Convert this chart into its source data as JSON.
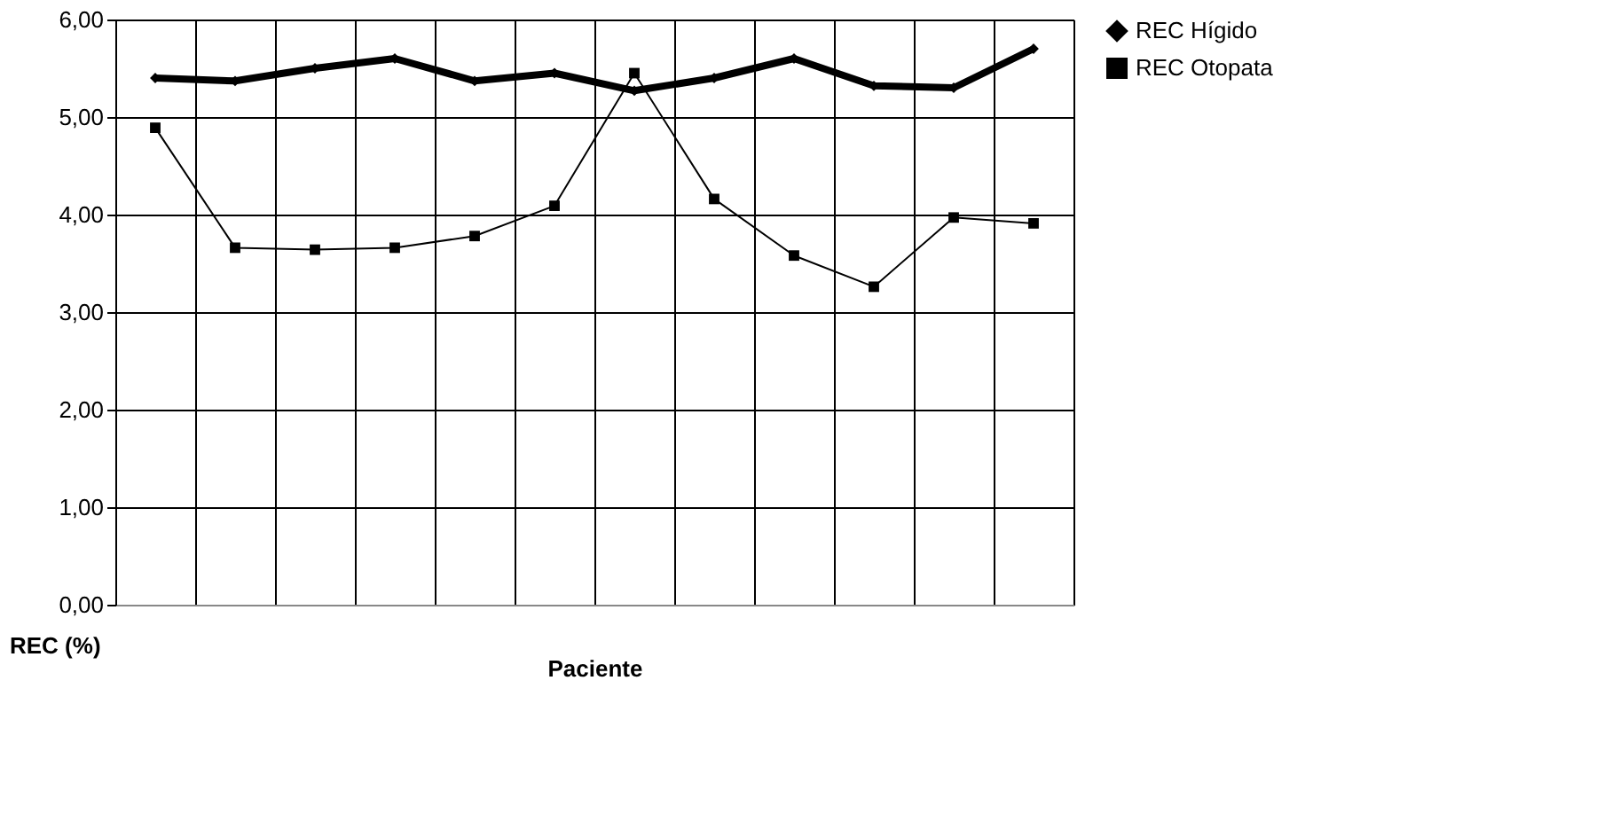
{
  "chart_data": {
    "type": "line",
    "xlabel": "Paciente",
    "ylabel": "REC (%)",
    "categories": [
      null,
      null,
      null,
      null,
      null,
      null,
      null,
      null,
      null,
      null,
      null,
      null
    ],
    "series": [
      {
        "name": "REC Hígido",
        "color": "#000000",
        "marker": "diamond",
        "values": [
          5.4,
          5.37,
          5.5,
          5.6,
          5.37,
          5.45,
          5.27,
          5.4,
          5.6,
          5.32,
          5.3,
          5.7
        ]
      },
      {
        "name": "REC Otopata",
        "color": "#000000",
        "marker": "square",
        "values": [
          4.89,
          3.66,
          3.64,
          3.66,
          3.78,
          4.09,
          5.45,
          4.16,
          3.58,
          3.26,
          3.97,
          3.91
        ]
      }
    ],
    "ylim": [
      0,
      6
    ],
    "yticks": [
      {
        "value": 0,
        "label": "0,00"
      },
      {
        "value": 1,
        "label": "1,00"
      },
      {
        "value": 2,
        "label": "2,00"
      },
      {
        "value": 3,
        "label": "3,00"
      },
      {
        "value": 4,
        "label": "4,00"
      },
      {
        "value": 5,
        "label": "5,00"
      },
      {
        "value": 6,
        "label": "6,00"
      }
    ],
    "grid": true,
    "legend": "right",
    "tick_labels": "y",
    "line_style": "solid"
  }
}
